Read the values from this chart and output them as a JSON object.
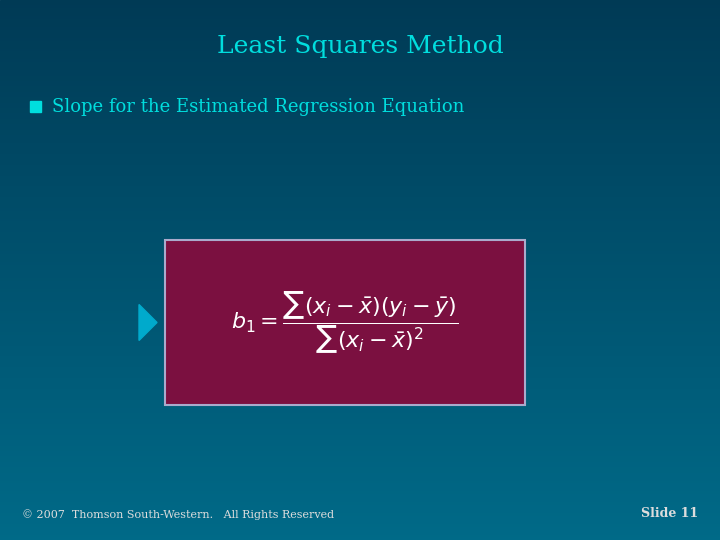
{
  "title": "Least Squares Method",
  "title_color": "#00DEDE",
  "bullet_text": "Slope for the Estimated Regression Equation",
  "bullet_color": "#00DEDE",
  "bg_color_top": "#003D5C",
  "bg_color_mid": "#005577",
  "bg_color_bot": "#006688",
  "box_bg": "#7B1040",
  "box_border": "#AAAACC",
  "footer_left": "© 2007  Thomson South-Western.   All Rights Reserved",
  "footer_right": "Slide 11",
  "footer_color": "#DDDDDD",
  "arrow_color": "#00AACC",
  "formula_color": "#FFFFFF"
}
